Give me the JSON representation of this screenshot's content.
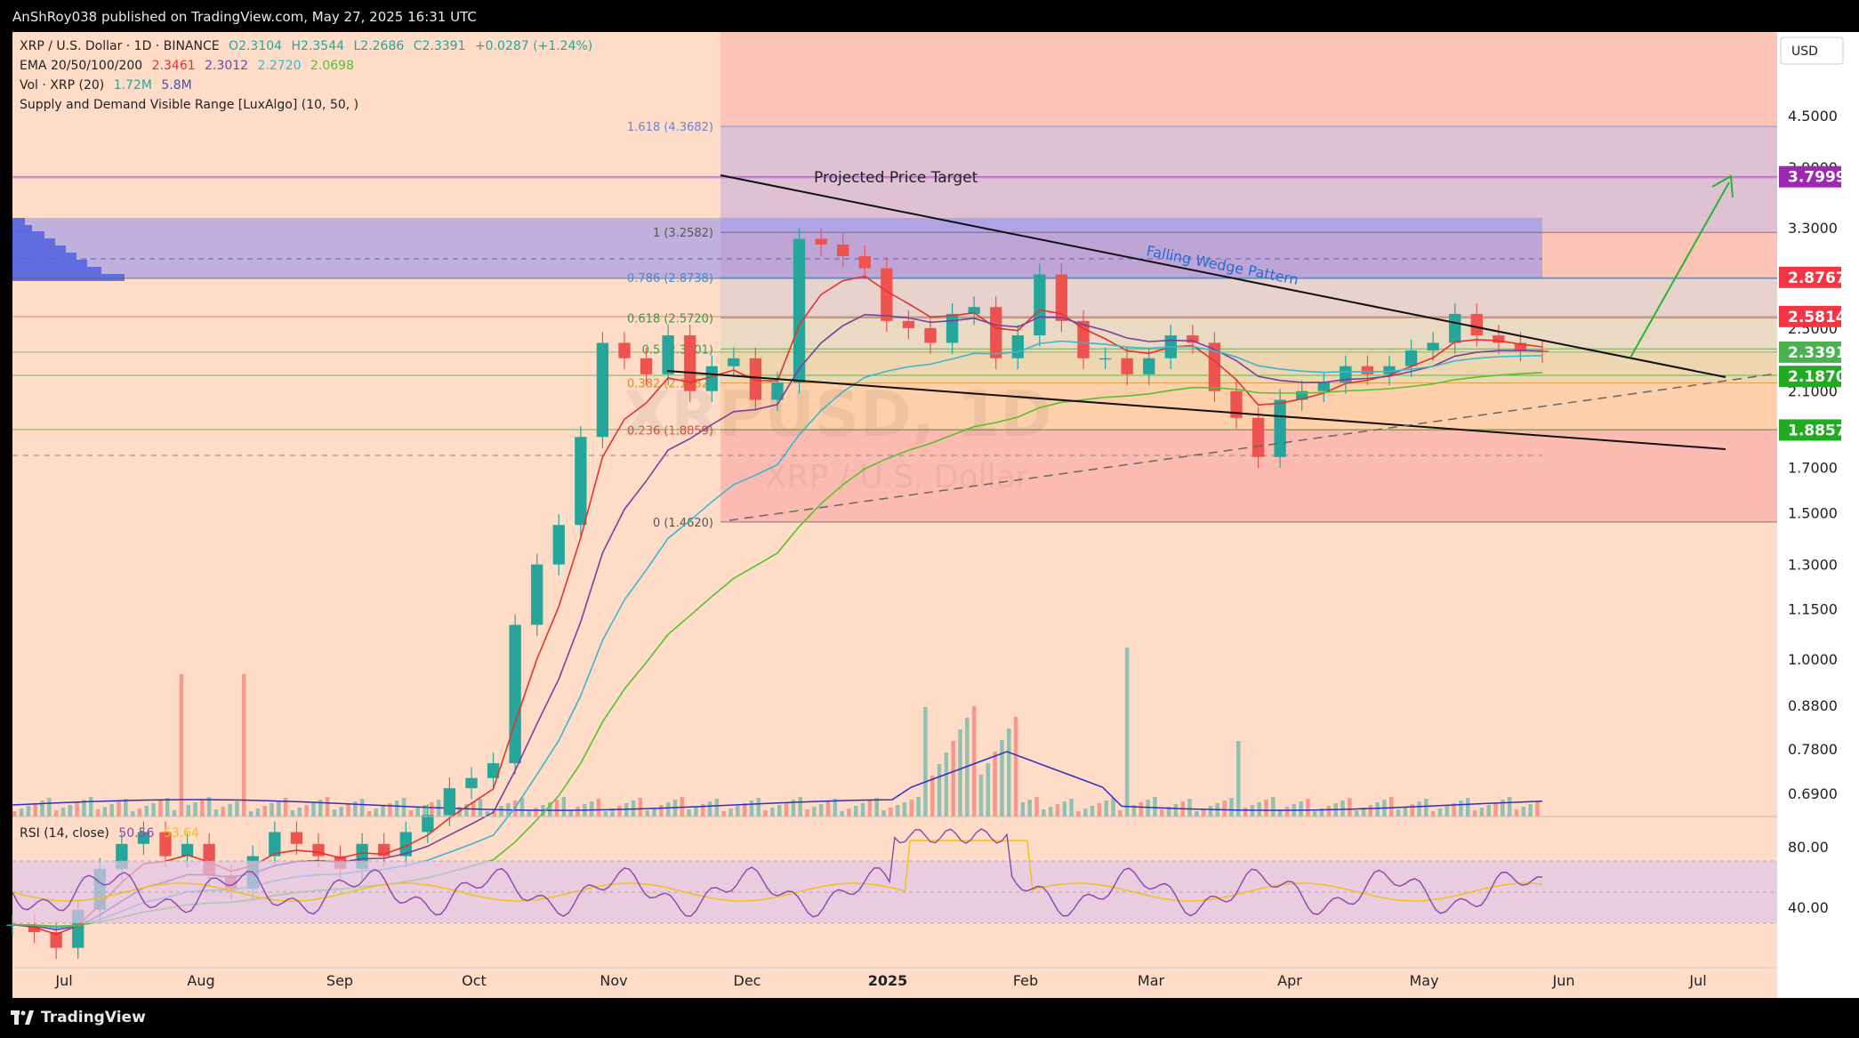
{
  "header": {
    "published": "AnShRoy038 published on TradingView.com, May 27, 2025 16:31 UTC"
  },
  "legend": {
    "symbol": "XRP / U.S. Dollar · 1D · BINANCE",
    "open": "O2.3104",
    "high": "H2.3544",
    "low": "L2.2686",
    "close": "C2.3391",
    "change": "+0.0287 (+1.24%)",
    "ema_label": "EMA 20/50/100/200",
    "ema20": "2.3461",
    "ema50": "2.3012",
    "ema100": "2.2720",
    "ema200": "2.0698",
    "vol_label": "Vol · XRP (20)",
    "vol1": "1.72M",
    "vol2": "5.8M",
    "supply_demand": "Supply and Demand Visible Range [LuxAlgo] (10, 50, )"
  },
  "rsi": {
    "label": "RSI (14, close)",
    "value": "50.56",
    "ma": "53.64"
  },
  "currency": "USD",
  "footer": {
    "brand": "TradingView"
  },
  "watermark": {
    "big": "XRPUSD, 1D",
    "small": "XRP / U.S. Dollar"
  },
  "colors": {
    "background": "#ffdcc8",
    "up": "#26a69a",
    "down": "#ef5350",
    "ema20": "#e5322d",
    "ema50": "#7b3fa0",
    "ema100": "#3bb5d0",
    "ema200": "#55c230",
    "rsi": "#8e44ad",
    "rsi_ma": "#f2c010",
    "arrow": "#27b531"
  },
  "chart_data": {
    "type": "candlestick",
    "x_ticks": [
      "Jul",
      "Aug",
      "Sep",
      "Oct",
      "Nov",
      "Dec",
      "2025",
      "Feb",
      "Mar",
      "Apr",
      "May",
      "Jun",
      "Jul"
    ],
    "y_scale": "log",
    "y_ticks": [
      "4.5000",
      "3.9000",
      "3.3000",
      "2.9000",
      "2.5000",
      "2.1000",
      "1.7000",
      "1.5000",
      "1.3000",
      "1.1500",
      "1.0000",
      "0.8800",
      "0.7800",
      "0.6900"
    ],
    "price_labels": [
      {
        "value": "3.7999",
        "color": "#9c27b0"
      },
      {
        "value": "2.8767",
        "color": "#f23645"
      },
      {
        "value": "2.5814",
        "color": "#f23645"
      },
      {
        "value": "2.3391",
        "color": "#4caf50"
      },
      {
        "value": "2.1870",
        "color": "#22ab22"
      },
      {
        "value": "1.8857",
        "color": "#22ab22"
      }
    ],
    "fib_levels": [
      {
        "label": "1.618 (4.3682)",
        "value": 4.3682,
        "color": "#6f7fd8"
      },
      {
        "label": "1 (3.2582)",
        "value": 3.2582,
        "color": "#555555"
      },
      {
        "label": "0.786 (2.8738)",
        "value": 2.8738,
        "color": "#3a8fd8"
      },
      {
        "label": "0.618 (2.5720)",
        "value": 2.572,
        "color": "#3a9a3a"
      },
      {
        "label": "0.5 (2.3601)",
        "value": 2.3601,
        "color": "#3aa03a"
      },
      {
        "label": "0.382 (2.1482)",
        "value": 2.1482,
        "color": "#e08a20"
      },
      {
        "label": "0.236 (1.8859)",
        "value": 1.8859,
        "color": "#e05050"
      },
      {
        "label": "0 (1.4620)",
        "value": 1.462,
        "color": "#555555"
      }
    ],
    "annotations": {
      "projected_target": "Projected Price Target",
      "wedge": "Falling Wedge Pattern"
    },
    "rsi_ticks": [
      "80.00",
      "40.00"
    ],
    "close_series_approx": [
      0.48,
      0.47,
      0.45,
      0.5,
      0.56,
      0.6,
      0.62,
      0.58,
      0.6,
      0.55,
      0.53,
      0.58,
      0.62,
      0.6,
      0.58,
      0.56,
      0.6,
      0.58,
      0.62,
      0.65,
      0.7,
      0.72,
      0.75,
      1.1,
      1.3,
      1.45,
      1.85,
      2.4,
      2.3,
      2.2,
      2.45,
      2.1,
      2.25,
      2.3,
      2.05,
      2.15,
      3.2,
      3.15,
      3.05,
      2.95,
      2.55,
      2.5,
      2.4,
      2.6,
      2.65,
      2.3,
      2.45,
      2.9,
      2.55,
      2.3,
      2.3,
      2.2,
      2.3,
      2.45,
      2.4,
      2.1,
      1.95,
      1.75,
      2.05,
      2.1,
      2.15,
      2.25,
      2.2,
      2.25,
      2.35,
      2.4,
      2.6,
      2.45,
      2.4,
      2.35,
      2.34
    ]
  }
}
